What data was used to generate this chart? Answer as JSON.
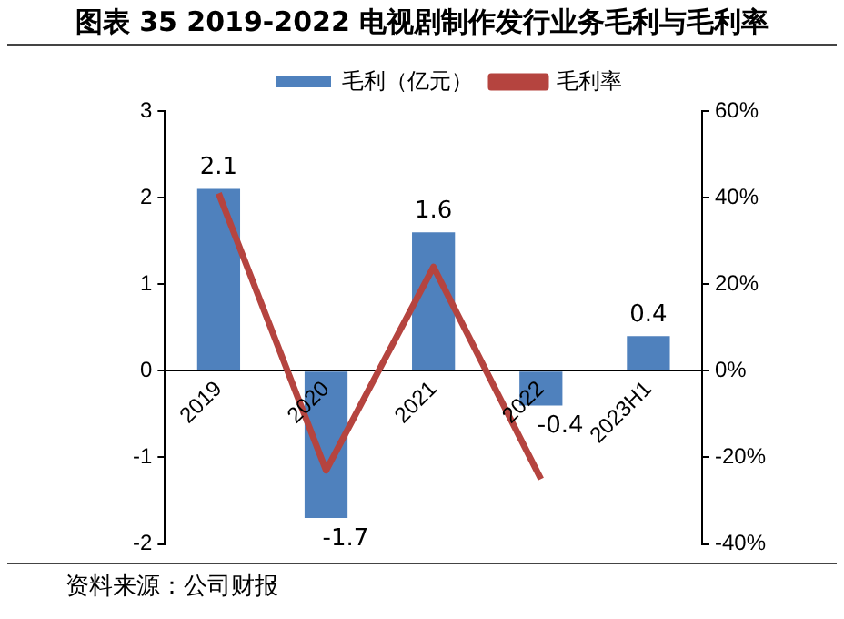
{
  "chart_data": {
    "type": "bar",
    "title": "图表 35 2019-2022 电视剧制作发行业务毛利与毛利率",
    "categories": [
      "2019",
      "2020",
      "2021",
      "2022",
      "2023H1"
    ],
    "series": [
      {
        "name": "毛利（亿元）",
        "color": "#4f81bd",
        "values": [
          2.1,
          -1.7,
          1.6,
          -0.4,
          0.4
        ],
        "value_labels": [
          "2.1",
          "-1.7",
          "1.6",
          "-0.4",
          "0.4"
        ]
      },
      {
        "name": "毛利率",
        "type": "line",
        "axis": "y2",
        "color": "#b5443f",
        "values": [
          41,
          -23,
          24,
          -25,
          null
        ]
      }
    ],
    "ylim": [
      -2,
      3
    ],
    "yticks": [
      -2,
      -1,
      0,
      1,
      2,
      3
    ],
    "y2lim": [
      -40,
      60
    ],
    "y2ticks": [
      {
        "value": -40,
        "label": "-40%"
      },
      {
        "value": -20,
        "label": "-20%"
      },
      {
        "value": 0,
        "label": "0%"
      },
      {
        "value": 20,
        "label": "20%"
      },
      {
        "value": 40,
        "label": "40%"
      },
      {
        "value": 60,
        "label": "60%"
      }
    ],
    "grid": false,
    "legend": "top",
    "marker": "none",
    "annotations": [
      "资料来源：公司财报"
    ]
  }
}
